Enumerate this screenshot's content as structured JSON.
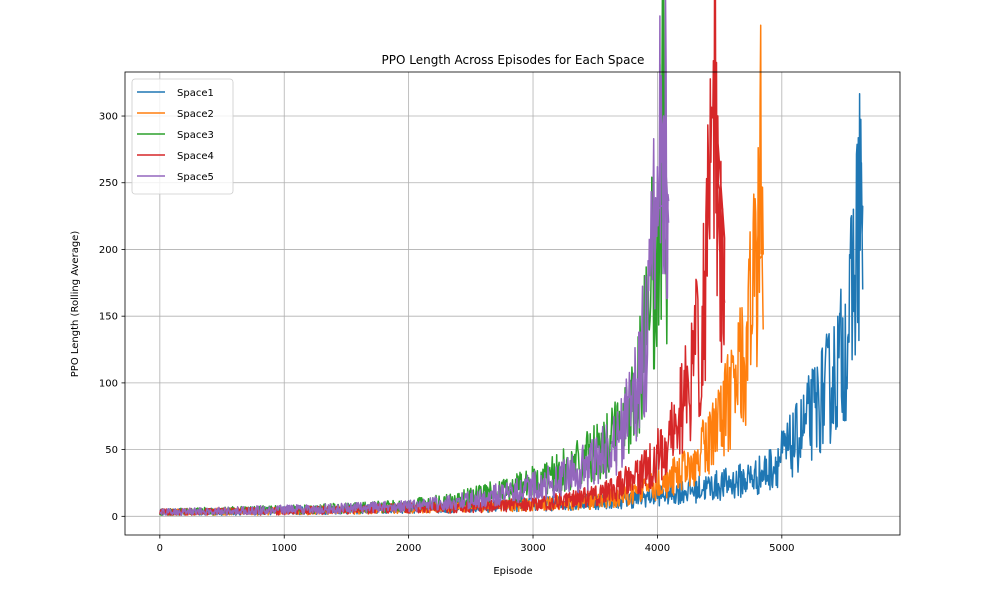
{
  "chart_data": {
    "type": "line",
    "title": "PPO Length Across Episodes for Each Space",
    "xlabel": "Episode",
    "ylabel": "PPO Length (Rolling Average)",
    "xlim": [
      -280,
      5950
    ],
    "ylim": [
      -14,
      333
    ],
    "xticks": [
      0,
      1000,
      2000,
      3000,
      4000,
      5000
    ],
    "yticks": [
      0,
      50,
      100,
      150,
      200,
      250,
      300
    ],
    "grid": true,
    "legend_position": "upper-left",
    "series": [
      {
        "name": "Space1",
        "color": "#1f77b4",
        "points": [
          [
            0,
            3
          ],
          [
            500,
            3.5
          ],
          [
            1000,
            4.5
          ],
          [
            1500,
            5
          ],
          [
            2000,
            6
          ],
          [
            2500,
            7
          ],
          [
            3000,
            9
          ],
          [
            3500,
            11
          ],
          [
            3800,
            13
          ],
          [
            4000,
            16
          ],
          [
            4300,
            20
          ],
          [
            4600,
            25
          ],
          [
            4800,
            30
          ],
          [
            4900,
            35
          ],
          [
            5000,
            45
          ],
          [
            5100,
            55
          ],
          [
            5200,
            70
          ],
          [
            5300,
            85
          ],
          [
            5400,
            100
          ],
          [
            5500,
            125
          ],
          [
            5550,
            150
          ],
          [
            5600,
            200
          ],
          [
            5640,
            265
          ],
          [
            5650,
            170
          ]
        ]
      },
      {
        "name": "Space2",
        "color": "#ff7f0e",
        "points": [
          [
            0,
            3
          ],
          [
            500,
            3.5
          ],
          [
            1000,
            4
          ],
          [
            1500,
            5
          ],
          [
            2000,
            6
          ],
          [
            2500,
            7
          ],
          [
            3000,
            9
          ],
          [
            3400,
            11
          ],
          [
            3700,
            15
          ],
          [
            3900,
            20
          ],
          [
            4100,
            28
          ],
          [
            4300,
            40
          ],
          [
            4400,
            55
          ],
          [
            4500,
            70
          ],
          [
            4600,
            90
          ],
          [
            4700,
            120
          ],
          [
            4750,
            150
          ],
          [
            4800,
            190
          ],
          [
            4830,
            269
          ],
          [
            4850,
            140
          ]
        ]
      },
      {
        "name": "Space3",
        "color": "#2ca02c",
        "points": [
          [
            0,
            3
          ],
          [
            500,
            4
          ],
          [
            1000,
            5
          ],
          [
            1500,
            6
          ],
          [
            2000,
            8
          ],
          [
            2300,
            11
          ],
          [
            2600,
            16
          ],
          [
            2900,
            22
          ],
          [
            3200,
            32
          ],
          [
            3400,
            42
          ],
          [
            3600,
            55
          ],
          [
            3750,
            75
          ],
          [
            3850,
            110
          ],
          [
            3950,
            170
          ],
          [
            4020,
            240
          ],
          [
            4060,
            310
          ],
          [
            4080,
            190
          ]
        ]
      },
      {
        "name": "Space4",
        "color": "#d62728",
        "points": [
          [
            0,
            3
          ],
          [
            500,
            3.5
          ],
          [
            1000,
            4
          ],
          [
            1500,
            5
          ],
          [
            2000,
            6
          ],
          [
            2500,
            7
          ],
          [
            3000,
            9
          ],
          [
            3300,
            12
          ],
          [
            3600,
            18
          ],
          [
            3800,
            28
          ],
          [
            3950,
            38
          ],
          [
            4050,
            50
          ],
          [
            4150,
            70
          ],
          [
            4250,
            95
          ],
          [
            4350,
            140
          ],
          [
            4420,
            220
          ],
          [
            4460,
            317
          ],
          [
            4500,
            200
          ],
          [
            4540,
            160
          ]
        ]
      },
      {
        "name": "Space5",
        "color": "#9467bd",
        "points": [
          [
            0,
            3
          ],
          [
            500,
            4
          ],
          [
            1000,
            5
          ],
          [
            1500,
            6
          ],
          [
            2000,
            7.5
          ],
          [
            2300,
            10
          ],
          [
            2600,
            14
          ],
          [
            2900,
            20
          ],
          [
            3200,
            28
          ],
          [
            3450,
            38
          ],
          [
            3650,
            52
          ],
          [
            3800,
            80
          ],
          [
            3900,
            130
          ],
          [
            3950,
            180
          ],
          [
            4000,
            230
          ],
          [
            4050,
            300
          ],
          [
            4090,
            220
          ]
        ]
      }
    ]
  }
}
